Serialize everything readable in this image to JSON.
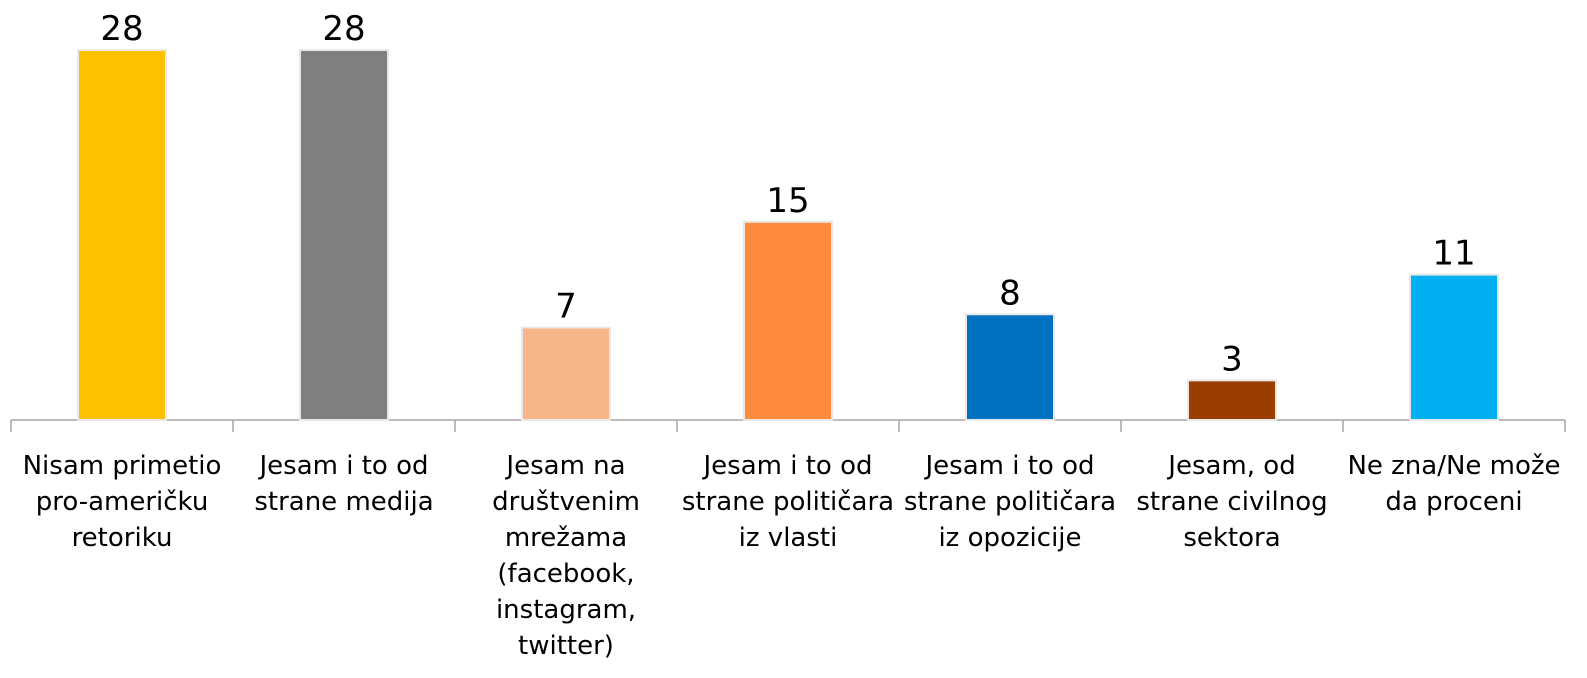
{
  "chart_data": {
    "type": "bar",
    "categories": [
      "Nisam primetio\npro-američku\nretoriku",
      "Jesam i to od\nstrane medija",
      "Jesam na\ndruštvenim\nmrežama\n(facebook,\ninstagram,\ntwitter)",
      "Jesam i to od\nstrane političara\niz vlasti",
      "Jesam i to od\nstrane političara\niz opozicije",
      "Jesam, od\nstrane civilnog\nsektora",
      "Ne zna/Ne može\nda proceni"
    ],
    "values": [
      28,
      28,
      7,
      15,
      8,
      3,
      11
    ],
    "colors": [
      "#ffc000",
      "#7f7f7f",
      "#f9b58a",
      "#ff8a3c",
      "#0070c0",
      "#9a3e00",
      "#00b0f0"
    ],
    "ylim": [
      0,
      28
    ]
  }
}
